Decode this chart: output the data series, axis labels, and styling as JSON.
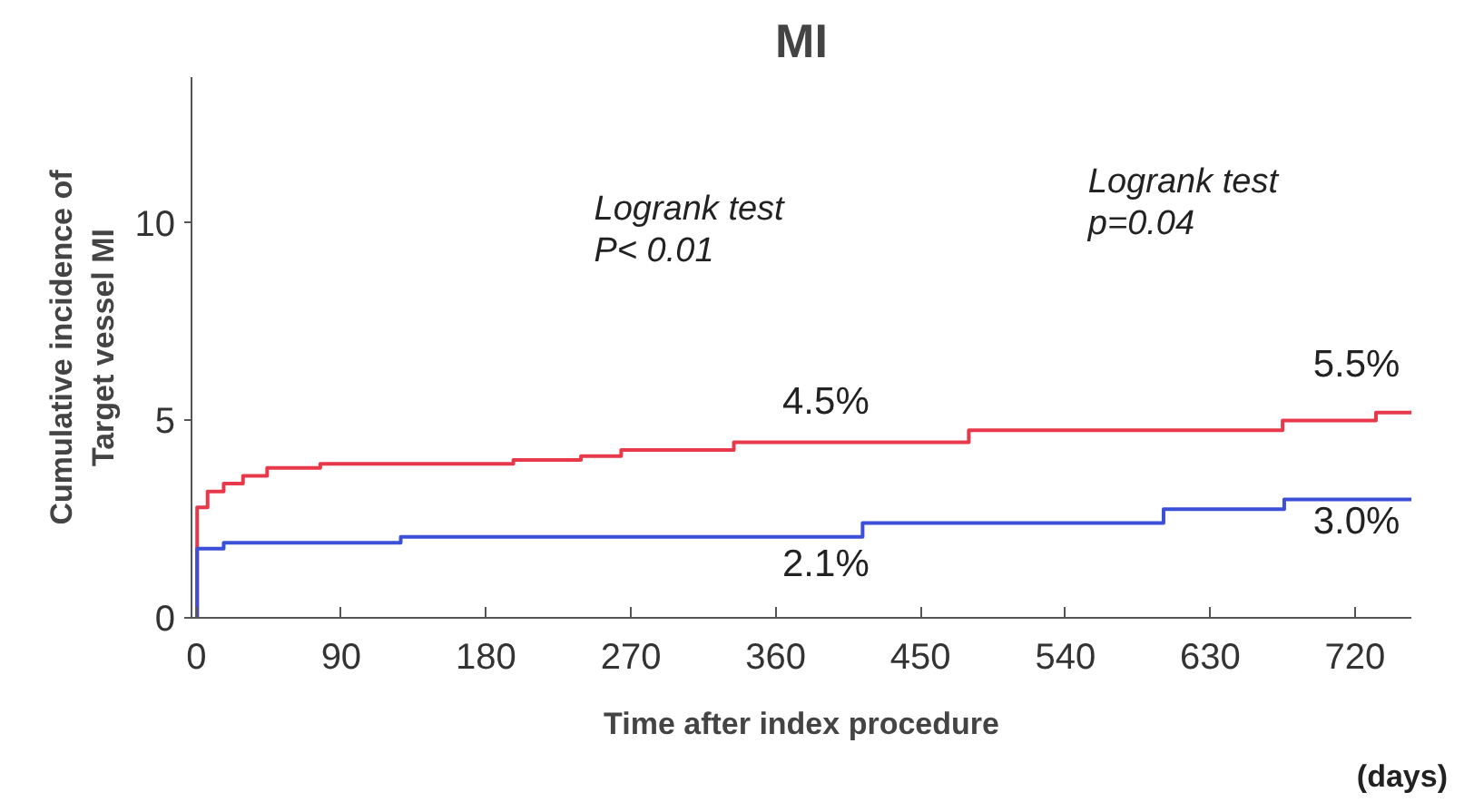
{
  "chart_data": {
    "type": "step",
    "title": "MI",
    "xlabel": "Time after index procedure",
    "ylabel": "Cumulative incidence of\nTarget vessel MI",
    "xlim": [
      -3,
      755
    ],
    "ylim": [
      0,
      13.7
    ],
    "xticks": [
      0,
      90,
      180,
      270,
      360,
      450,
      540,
      630,
      720
    ],
    "yticks": [
      0,
      5,
      10
    ],
    "grid": false,
    "marker": "none",
    "line_style": "solid",
    "series": [
      {
        "color": "#e8394a",
        "x": [
          0,
          0.5,
          7,
          17,
          29,
          44,
          77,
          197,
          239,
          264,
          334,
          480,
          675,
          733,
          755
        ],
        "values": [
          0,
          2.8,
          3.2,
          3.4,
          3.6,
          3.8,
          3.9,
          4.0,
          4.1,
          4.25,
          4.45,
          4.75,
          5.0,
          5.2,
          5.2
        ]
      },
      {
        "color": "#3b4fd8",
        "x": [
          0,
          0.5,
          17,
          127,
          414,
          601,
          676,
          755
        ],
        "values": [
          0,
          1.75,
          1.9,
          2.05,
          2.4,
          2.75,
          3.0,
          3.0
        ]
      }
    ],
    "annotations": [
      "4.5%",
      "2.1%",
      "5.5%",
      "3.0%",
      "Logrank test\nP< 0.01",
      "Logrank test\np=0.04",
      "(days)"
    ]
  }
}
